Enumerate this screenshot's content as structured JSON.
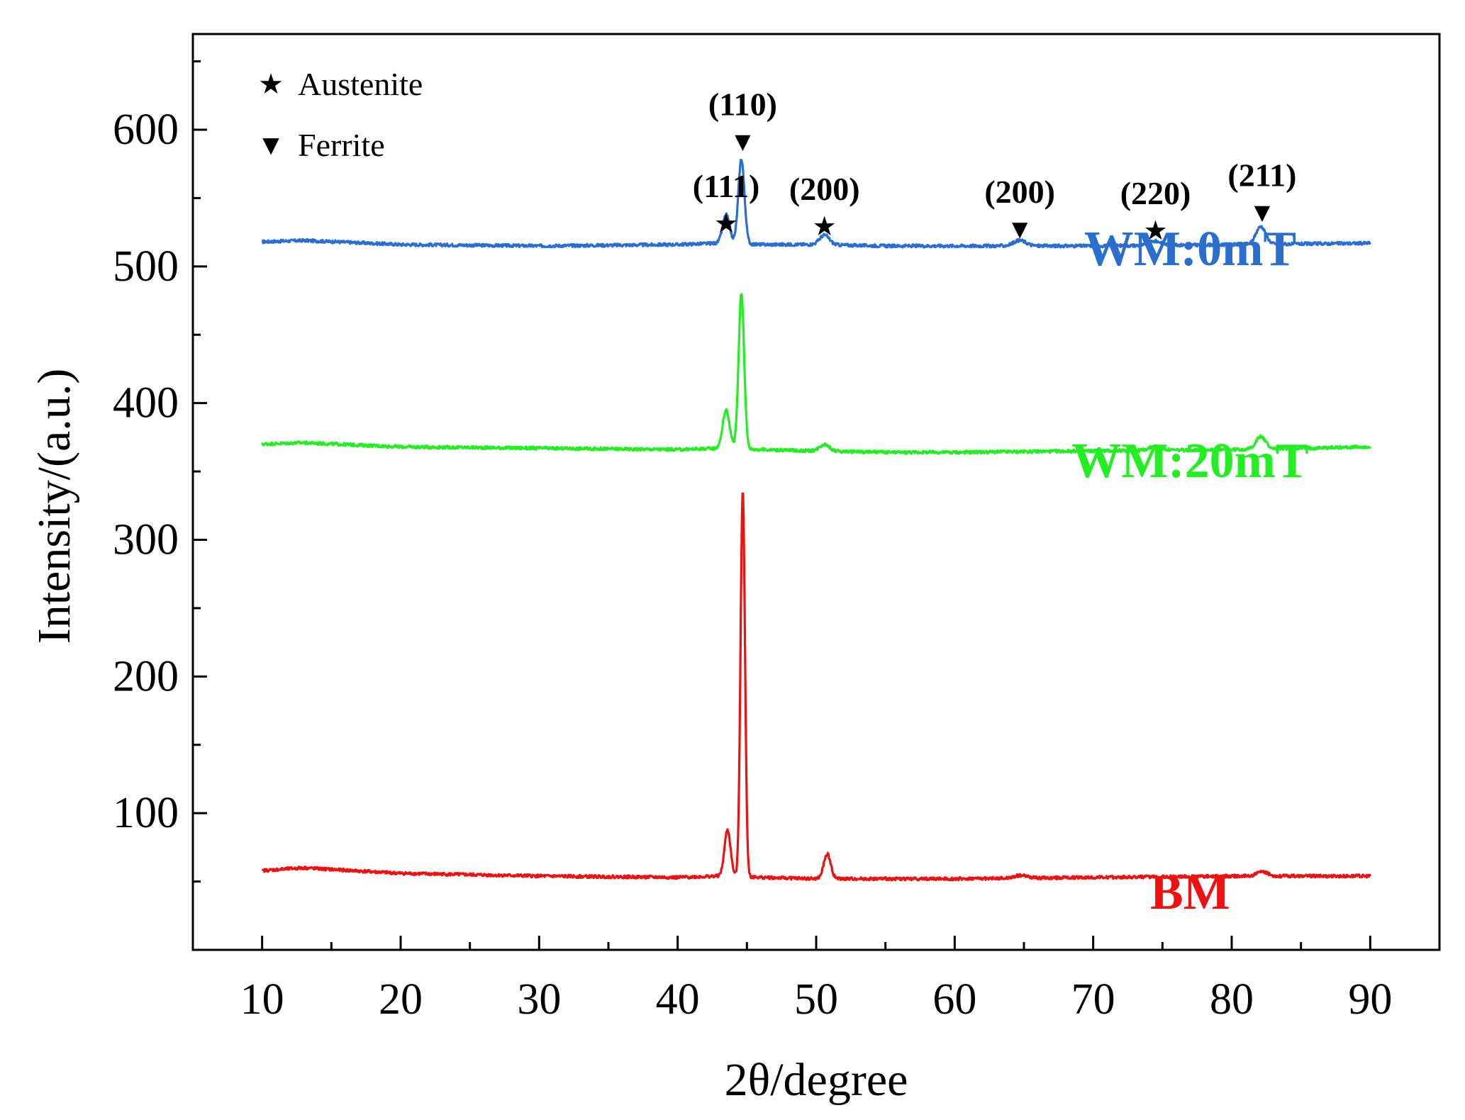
{
  "chart_data": {
    "type": "line",
    "xlabel": "2θ/degree",
    "ylabel": "Intensity/(a.u.)",
    "xlim": [
      5,
      95
    ],
    "ylim": [
      0,
      670
    ],
    "x_ticks": [
      10,
      20,
      30,
      40,
      50,
      60,
      70,
      80,
      90
    ],
    "y_ticks": [
      100,
      200,
      300,
      400,
      500,
      600
    ],
    "legend": [
      {
        "symbol": "★",
        "label": "Austenite"
      },
      {
        "symbol": "▼",
        "label": "Ferrite"
      }
    ],
    "series": [
      {
        "name": "WM:0mT",
        "color": "#2a6fd0",
        "baseline": [
          [
            10,
            518
          ],
          [
            13,
            519
          ],
          [
            20,
            516
          ],
          [
            30,
            515
          ],
          [
            40,
            516
          ],
          [
            43,
            517
          ],
          [
            46,
            516
          ],
          [
            50,
            516
          ],
          [
            55,
            515
          ],
          [
            60,
            515
          ],
          [
            70,
            515
          ],
          [
            80,
            516
          ],
          [
            90,
            517
          ]
        ],
        "peaks": [
          {
            "center": 43.5,
            "height": 21,
            "width": 0.25
          },
          {
            "center": 44.6,
            "height": 62,
            "width": 0.22
          },
          {
            "center": 50.6,
            "height": 7,
            "width": 0.35
          },
          {
            "center": 64.7,
            "height": 4,
            "width": 0.45
          },
          {
            "center": 74.5,
            "height": 3,
            "width": 0.45
          },
          {
            "center": 82.1,
            "height": 13,
            "width": 0.35
          }
        ]
      },
      {
        "name": "WM:20mT",
        "color": "#22ee22",
        "baseline": [
          [
            10,
            370
          ],
          [
            13,
            371
          ],
          [
            20,
            368
          ],
          [
            30,
            367
          ],
          [
            40,
            366
          ],
          [
            43,
            367
          ],
          [
            46,
            366
          ],
          [
            50,
            365
          ],
          [
            55,
            364
          ],
          [
            60,
            364
          ],
          [
            70,
            365
          ],
          [
            80,
            366
          ],
          [
            90,
            368
          ]
        ],
        "peaks": [
          {
            "center": 43.5,
            "height": 28,
            "width": 0.25
          },
          {
            "center": 44.6,
            "height": 114,
            "width": 0.2
          },
          {
            "center": 50.6,
            "height": 5,
            "width": 0.35
          },
          {
            "center": 74.5,
            "height": 3,
            "width": 0.45
          },
          {
            "center": 82.1,
            "height": 9,
            "width": 0.35
          }
        ]
      },
      {
        "name": "BM",
        "color": "#ee1111",
        "baseline": [
          [
            10,
            58
          ],
          [
            13,
            60
          ],
          [
            20,
            56
          ],
          [
            30,
            54
          ],
          [
            40,
            53
          ],
          [
            43,
            54
          ],
          [
            46,
            53
          ],
          [
            50,
            52
          ],
          [
            55,
            52
          ],
          [
            60,
            52
          ],
          [
            70,
            53
          ],
          [
            80,
            54
          ],
          [
            90,
            54
          ]
        ],
        "peaks": [
          {
            "center": 43.6,
            "height": 34,
            "width": 0.22
          },
          {
            "center": 44.7,
            "height": 282,
            "width": 0.16
          },
          {
            "center": 50.8,
            "height": 18,
            "width": 0.25
          },
          {
            "center": 64.8,
            "height": 2,
            "width": 0.45
          },
          {
            "center": 82.2,
            "height": 3,
            "width": 0.4
          }
        ]
      }
    ],
    "annotations": [
      {
        "label": "(111)",
        "marker": "★",
        "x": 43.5,
        "y": 532
      },
      {
        "label": "(110)",
        "marker": "▼",
        "x": 44.7,
        "y": 592
      },
      {
        "label": "(200)",
        "marker": "★",
        "x": 50.6,
        "y": 530
      },
      {
        "label": "(200)",
        "marker": "▼",
        "x": 64.7,
        "y": 528
      },
      {
        "label": "(220)",
        "marker": "★",
        "x": 74.5,
        "y": 527
      },
      {
        "label": "(211)",
        "marker": "▼",
        "x": 82.2,
        "y": 540
      }
    ],
    "series_labels": [
      {
        "text": "WM:0mT",
        "color": "#2a6fd0",
        "x": 77,
        "y": 501
      },
      {
        "text": "WM:20mT",
        "color": "#22ee22",
        "x": 77,
        "y": 346
      },
      {
        "text": "BM",
        "color": "#ee1111",
        "x": 77,
        "y": 30
      }
    ]
  }
}
